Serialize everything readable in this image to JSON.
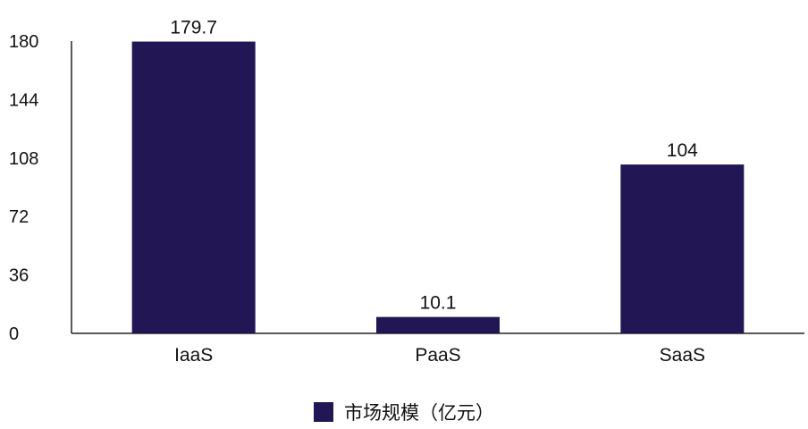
{
  "chart_data": {
    "type": "bar",
    "categories": [
      "IaaS",
      "PaaS",
      "SaaS"
    ],
    "series": [
      {
        "name": "市场规模（亿元）",
        "values": [
          179.7,
          10.1,
          104
        ]
      }
    ],
    "data_labels": [
      "179.7",
      "10.1",
      "104"
    ],
    "yticks": [
      "0",
      "36",
      "72",
      "108",
      "144",
      "180"
    ],
    "ylim": [
      0,
      180
    ],
    "grid": false,
    "legend_position": "bottom-center",
    "bar_color": "#231654",
    "axis_color": "#222222"
  }
}
